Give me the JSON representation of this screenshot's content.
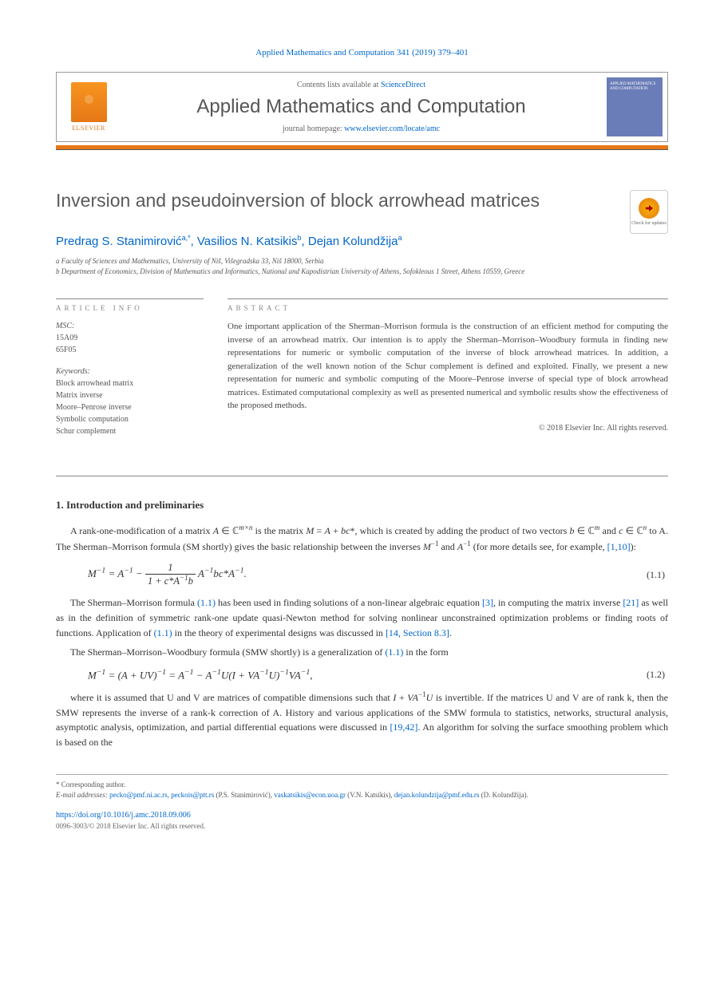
{
  "journal_ref": "Applied Mathematics and Computation 341 (2019) 379–401",
  "header": {
    "contents_prefix": "Contents lists available at ",
    "contents_link": "ScienceDirect",
    "journal_name": "Applied Mathematics and Computation",
    "homepage_prefix": "journal homepage: ",
    "homepage_link": "www.elsevier.com/locate/amc",
    "elsevier_label": "ELSEVIER",
    "cover_text": "APPLIED MATHEMATICS AND COMPUTATION"
  },
  "updates_badge": "Check for updates",
  "title": "Inversion and pseudoinversion of block arrowhead matrices",
  "authors_html": "Predrag S. Stanimirović<sup>a,*</sup>, Vasilios N. Katsikis<sup>b</sup>, Dejan Kolundžija<sup>a</sup>",
  "affiliations": [
    "a Faculty of Sciences and Mathematics, University of Niš, Višegradska 33, Niš 18000, Serbia",
    "b Department of Economics, Division of Mathematics and Informatics, National and Kapodistrian University of Athens, Sofokleous 1 Street, Athens 10559, Greece"
  ],
  "info": {
    "head": "ARTICLE INFO",
    "msc_label": "MSC:",
    "msc": [
      "15A09",
      "65F05"
    ],
    "keywords_label": "Keywords:",
    "keywords": [
      "Block arrowhead matrix",
      "Matrix inverse",
      "Moore–Penrose inverse",
      "Symbolic computation",
      "Schur complement"
    ]
  },
  "abstract": {
    "head": "ABSTRACT",
    "text": "One important application of the Sherman–Morrison formula is the construction of an efficient method for computing the inverse of an arrowhead matrix. Our intention is to apply the Sherman–Morrison–Woodbury formula in finding new representations for numeric or symbolic computation of the inverse of block arrowhead matrices. In addition, a generalization of the well known notion of the Schur complement is defined and exploited. Finally, we present a new representation for numeric and symbolic computing of the Moore–Penrose inverse of special type of block arrowhead matrices. Estimated computational complexity as well as presented numerical and symbolic results show the effectiveness of the proposed methods.",
    "copyright": "© 2018 Elsevier Inc. All rights reserved."
  },
  "section1": {
    "heading": "1. Introduction and preliminaries",
    "p1_pre": "A rank-one-modification of a matrix ",
    "p1_math1": "A ∈ ℂ",
    "p1_mid1": " is the matrix ",
    "p1_math2": "M = A + bc*",
    "p1_mid2": ", which is created by adding the product of two vectors ",
    "p1_math3": "b ∈ ℂ",
    "p1_mid3": " and ",
    "p1_math4": "c ∈ ℂ",
    "p1_mid4": " to A. The Sherman–Morrison formula (SM shortly) gives the basic relationship between the inverses ",
    "p1_inv1": "M⁻¹",
    "p1_mid5": " and ",
    "p1_inv2": "A⁻¹",
    "p1_mid6": " (for more details see, for example, ",
    "p1_cite": "[1,10]",
    "p1_end": "):",
    "eq11_num": "(1.1)",
    "p2": "The Sherman–Morrison formula ",
    "p2_cite1": "(1.1)",
    "p2_mid1": " has been used in finding solutions of a non-linear algebraic equation ",
    "p2_cite2": "[3]",
    "p2_mid2": ", in computing the matrix inverse ",
    "p2_cite3": "[21]",
    "p2_mid3": " as well as in the definition of symmetric rank-one update quasi-Newton method for solving nonlinear unconstrained optimization problems or finding roots of functions. Application of ",
    "p2_cite4": "(1.1)",
    "p2_mid4": " in the theory of experimental designs was discussed in ",
    "p2_cite5": "[14, Section 8.3]",
    "p2_end": ".",
    "p3": "The Sherman–Morrison–Woodbury formula (SMW shortly) is a generalization of ",
    "p3_cite": "(1.1)",
    "p3_end": " in the form",
    "eq12_num": "(1.2)",
    "p4_pre": "where it is assumed that U and V are matrices of compatible dimensions such that ",
    "p4_math": "I + VA⁻¹U",
    "p4_mid1": " is invertible. If the matrices U and V are of rank k, then the SMW represents the inverse of a rank-k correction of A. History and various applications of the SMW formula to statistics, networks, structural analysis, asymptotic analysis, optimization, and partial differential equations were discussed in ",
    "p4_cite": "[19,42]",
    "p4_end": ". An algorithm for solving the surface smoothing problem which is based on the"
  },
  "footnotes": {
    "corr": "* Corresponding author.",
    "email_label": "E-mail addresses: ",
    "emails": [
      {
        "addr": "pecko@pmf.ni.ac.rs",
        "who": ""
      },
      {
        "addr": "peckois@ptt.rs",
        "who": " (P.S. Stanimirović), "
      },
      {
        "addr": "vaskatsikis@econ.uoa.gr",
        "who": " (V.N. Katsikis), "
      },
      {
        "addr": "dejan.kolundzija@pmf.edu.rs",
        "who": " (D. Kolundžija)."
      }
    ],
    "doi": "https://doi.org/10.1016/j.amc.2018.09.006",
    "issn_copy": "0096-3003/© 2018 Elsevier Inc. All rights reserved."
  },
  "colors": {
    "link": "#0066cc",
    "accent": "#e67817",
    "text": "#333333",
    "muted": "#555555",
    "cover": "#6b7db8"
  }
}
